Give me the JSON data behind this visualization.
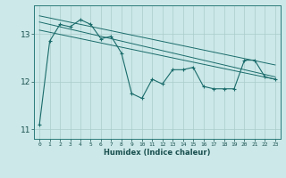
{
  "bg_color": "#cce8e8",
  "grid_color": "#aacccc",
  "line_color": "#1a6b6b",
  "xlabel": "Humidex (Indice chaleur)",
  "x_ticks": [
    0,
    1,
    2,
    3,
    4,
    5,
    6,
    7,
    8,
    9,
    10,
    11,
    12,
    13,
    14,
    15,
    16,
    17,
    18,
    19,
    20,
    21,
    22,
    23
  ],
  "ylim": [
    10.8,
    13.6
  ],
  "y_ticks": [
    11,
    12,
    13
  ],
  "series1": [
    11.1,
    12.85,
    13.2,
    13.15,
    13.3,
    13.2,
    12.9,
    12.95,
    12.6,
    11.75,
    11.65,
    12.05,
    11.95,
    12.25,
    12.25,
    12.3,
    11.9,
    11.85,
    11.85,
    11.85,
    12.45,
    12.45,
    12.1,
    12.05
  ],
  "series2_x": [
    0,
    23
  ],
  "series2_y": [
    13.25,
    12.1
  ],
  "series3_x": [
    0,
    23
  ],
  "series3_y": [
    13.38,
    12.35
  ],
  "series4_x": [
    0,
    23
  ],
  "series4_y": [
    13.08,
    12.05
  ]
}
